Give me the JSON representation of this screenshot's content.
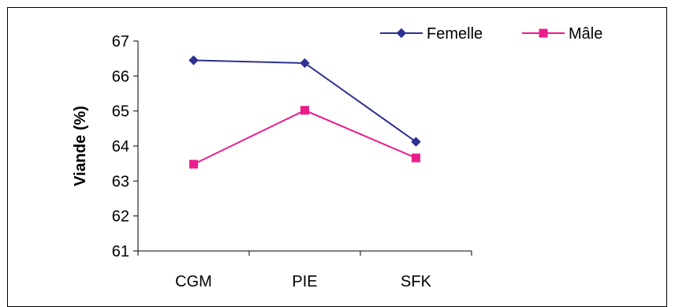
{
  "chart_data": {
    "type": "line",
    "title": "",
    "xlabel": "",
    "ylabel": "Viande (%)",
    "categories": [
      "CGM",
      "PIE",
      "SFK"
    ],
    "ylim": [
      61,
      67
    ],
    "yticks": [
      61,
      62,
      63,
      64,
      65,
      66,
      67
    ],
    "grid": false,
    "legend_position": "top-right",
    "series": [
      {
        "name": "Femelle",
        "values": [
          66.45,
          66.37,
          64.12
        ],
        "color": "#2E3192",
        "marker": "diamond"
      },
      {
        "name": "Mâle",
        "values": [
          63.48,
          65.02,
          63.66
        ],
        "color": "#EC1C8C",
        "marker": "square"
      }
    ]
  }
}
